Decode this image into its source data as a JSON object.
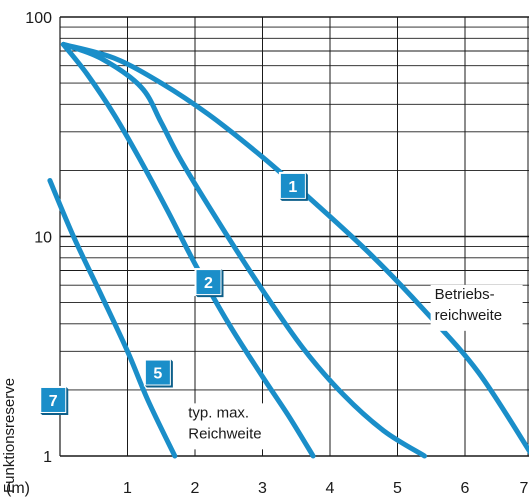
{
  "chart_data": {
    "type": "line",
    "title": "",
    "xlabel": "(m)",
    "ylabel": "Funktionsreserve",
    "x_scale": "linear",
    "y_scale": "log",
    "xlim": [
      0,
      7
    ],
    "ylim": [
      1,
      100
    ],
    "x_ticks": [
      "1",
      "2",
      "3",
      "4",
      "5",
      "6",
      "7"
    ],
    "y_ticks": [
      "1",
      "10",
      "100"
    ],
    "grid": true,
    "series_color": "#1a8ec9",
    "series": [
      {
        "label": "1",
        "x": [
          0.05,
          0.8,
          1.5,
          2.2,
          3.0,
          3.8,
          4.6,
          5.4,
          6.2,
          7.0
        ],
        "y": [
          75,
          65,
          50,
          36,
          23,
          14,
          8.3,
          4.6,
          2.4,
          1.0
        ]
      },
      {
        "label": "2",
        "x": [
          0.05,
          0.6,
          1.2,
          1.5,
          1.8,
          2.4,
          3.0,
          3.6,
          4.2,
          4.8,
          5.4
        ],
        "y": [
          75,
          65,
          48,
          33,
          22,
          11,
          5.7,
          3.1,
          1.9,
          1.3,
          1.0
        ]
      },
      {
        "label": "5",
        "x": [
          0.05,
          0.4,
          0.8,
          1.2,
          1.6,
          2.0,
          2.5,
          3.0,
          3.4,
          3.75
        ],
        "y": [
          75,
          55,
          36,
          22,
          13,
          7.5,
          4.0,
          2.3,
          1.5,
          1.0
        ]
      },
      {
        "label": "7",
        "x": [
          -0.15,
          0.2,
          0.6,
          1.0,
          1.3,
          1.7
        ],
        "y": [
          18,
          10,
          5.5,
          3.0,
          1.8,
          1.0
        ]
      }
    ],
    "badges": [
      {
        "text": "1",
        "x": 3.45,
        "y": 17
      },
      {
        "text": "2",
        "x": 2.2,
        "y": 6.2
      },
      {
        "text": "5",
        "x": 1.45,
        "y": 2.4
      },
      {
        "text": "7",
        "x": -0.1,
        "y": 1.8
      }
    ],
    "annotations": [
      {
        "lines": [
          "Betriebs-",
          "reichweite"
        ],
        "x": 5.55,
        "y": 5.2
      },
      {
        "lines": [
          "typ. max.",
          "Reichweite"
        ],
        "x": 1.9,
        "y": 1.5
      }
    ]
  }
}
